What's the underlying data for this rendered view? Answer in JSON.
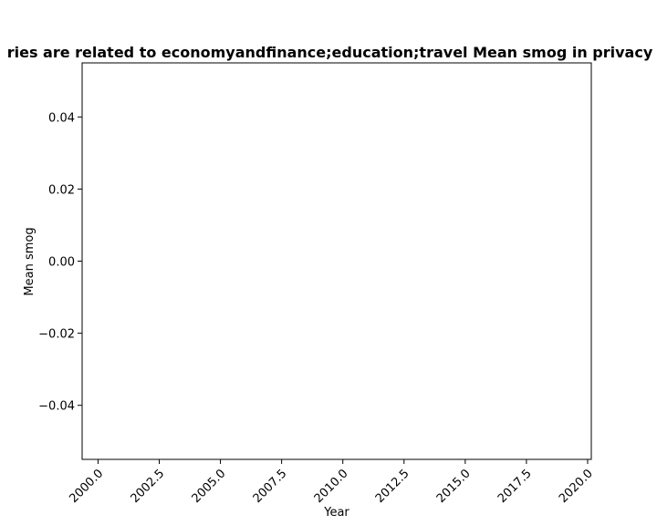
{
  "chart_data": {
    "type": "line",
    "title": "ries are related to economyandfinance;education;travel Mean smog in privacy p",
    "xlabel": "Year",
    "ylabel": "Mean smog",
    "xlim": [
      1999.35,
      2020.15
    ],
    "ylim": [
      -0.055,
      0.055
    ],
    "x_ticks": [
      2000.0,
      2002.5,
      2005.0,
      2007.5,
      2010.0,
      2012.5,
      2015.0,
      2017.5,
      2020.0
    ],
    "x_tick_labels": [
      "2000.0",
      "2002.5",
      "2005.0",
      "2007.5",
      "2010.0",
      "2012.5",
      "2015.0",
      "2017.5",
      "2020.0"
    ],
    "y_ticks": [
      0.04,
      0.02,
      0.0,
      -0.02,
      -0.04
    ],
    "y_tick_labels": [
      "0.04",
      "0.02",
      "0.00",
      "−0.02",
      "−0.04"
    ],
    "series": [],
    "grid": false,
    "x_tick_rotation": 45
  }
}
